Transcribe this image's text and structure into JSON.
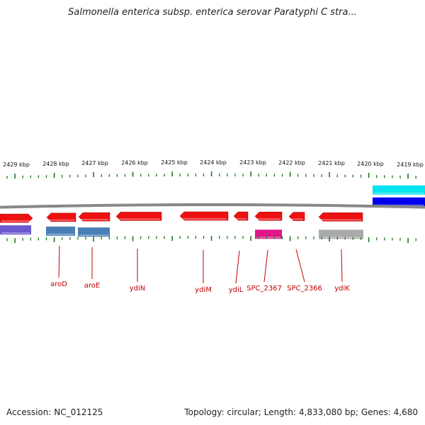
{
  "title": "Salmonella enterica subsp. enterica serovar Paratyphi C stra...",
  "footer": {
    "accession": "Accession: NC_012125",
    "summary": "Topology: circular; Length: 4,833,080 bp; Genes: 4,680"
  },
  "colors": {
    "gene_red": "#ee1111",
    "tick_green": "#1a7a1a",
    "label_red": "#c00000",
    "backbone": "#888888",
    "cyan": "#00e5ee",
    "blue": "#0000ee",
    "steelblue": "#4a7fb5",
    "slateblue": "#6a5acd",
    "magenta": "#e0158a",
    "gray": "#aaaaaa"
  },
  "scale": {
    "labels": [
      "2429 kbp",
      "2428 kbp",
      "2427 kbp",
      "2426 kbp",
      "2425 kbp",
      "2424 kbp",
      "2423 kbp",
      "2422 kbp",
      "2421 kbp",
      "2420 kbp",
      "2419 kbp"
    ]
  },
  "genes": [
    {
      "label": "aroD"
    },
    {
      "label": "aroE"
    },
    {
      "label": "ydiN"
    },
    {
      "label": "ydiM"
    },
    {
      "label": "ydiL"
    },
    {
      "label": "SPC_2367"
    },
    {
      "label": "SPC_2366"
    },
    {
      "label": "ydiK"
    }
  ]
}
